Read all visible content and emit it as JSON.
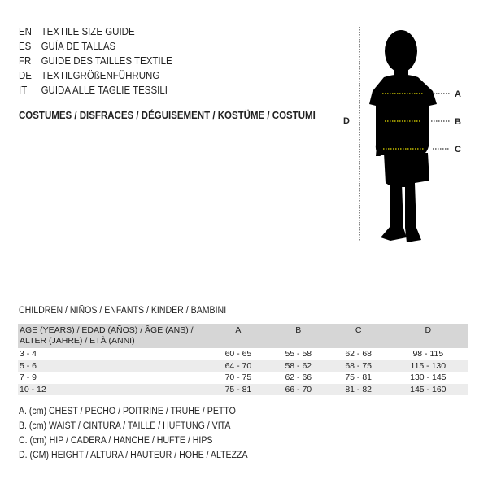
{
  "languages": [
    {
      "code": "EN",
      "title": "TEXTILE SIZE GUIDE"
    },
    {
      "code": "ES",
      "title": "GUÍA DE TALLAS"
    },
    {
      "code": "FR",
      "title": "GUIDE DES TAILLES TEXTILE"
    },
    {
      "code": "DE",
      "title": "TEXTILGRÖßENFÜHRUNG"
    },
    {
      "code": "IT",
      "title": "GUIDA ALLE TAGLIE TESSILI"
    }
  ],
  "category": "COSTUMES / DISFRACES / DÉGUISEMENT / KOSTÜME / COSTUMI",
  "figure": {
    "labels": [
      "A",
      "B",
      "C"
    ],
    "height_label": "D",
    "measure_line_color": "#e8e000"
  },
  "subtitle": "CHILDREN / NIÑOS / ENFANTS / KINDER / BAMBINI",
  "table": {
    "headers": [
      "AGE (YEARS) / EDAD (AÑOS) / ÂGE (ANS) / ALTER (JAHRE) / ETÀ (ANNI)",
      "A",
      "B",
      "C",
      "D"
    ],
    "rows": [
      [
        "3 - 4",
        "60 - 65",
        "55 - 58",
        "62 - 68",
        "98 - 115"
      ],
      [
        "5 - 6",
        "64 - 70",
        "58 - 62",
        "68 - 75",
        "115 - 130"
      ],
      [
        "7 - 9",
        "70 - 75",
        "62 - 66",
        "75 - 81",
        "130 - 145"
      ],
      [
        "10 - 12",
        "75 - 81",
        "66 - 70",
        "81 - 82",
        "145 - 160"
      ]
    ]
  },
  "legend": [
    "A. (cm) CHEST / PECHO / POITRINE / TRUHE / PETTO",
    "B. (cm) WAIST / CINTURA / TAILLE / HÜFTUNG / VITA",
    "C. (cm) HIP / CADERA / HANCHE / HÜFTE / HIPS",
    "D. (CM) HEIGHT / ALTURA / HAUTEUR / HÖHE / ALTEZZA"
  ]
}
